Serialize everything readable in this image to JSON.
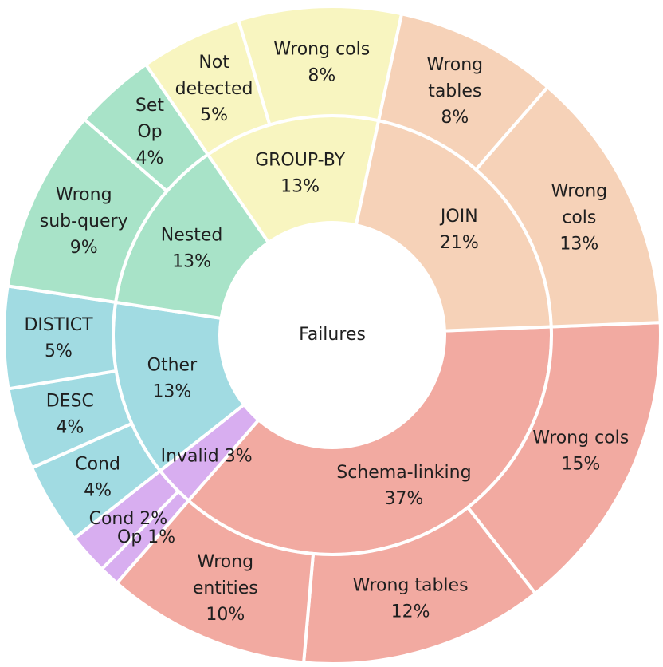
{
  "chart_data": {
    "type": "sunburst",
    "center_label": "Failures",
    "inner": [
      {
        "name": "Schema-linking",
        "label": "Schema-linking\n37%",
        "value": 37,
        "color": "#f2aaa1"
      },
      {
        "name": "Invalid",
        "label": "Invalid 3%",
        "value": 3,
        "color": "#d8aef0"
      },
      {
        "name": "Other",
        "label": "Other\n13%",
        "value": 13,
        "color": "#a1dbe2"
      },
      {
        "name": "Nested",
        "label": "Nested\n13%",
        "value": 13,
        "color": "#a8e3c8"
      },
      {
        "name": "GROUP-BY",
        "label": "GROUP-BY\n13%",
        "value": 13,
        "color": "#f8f5c0"
      },
      {
        "name": "JOIN",
        "label": "JOIN\n21%",
        "value": 21,
        "color": "#f6d2b8"
      }
    ],
    "outer": [
      {
        "parent": "Schema-linking",
        "label": "Wrong cols\n15%",
        "value": 15
      },
      {
        "parent": "Schema-linking",
        "label": "Wrong tables\n12%",
        "value": 12
      },
      {
        "parent": "Schema-linking",
        "label": "Wrong\nentities\n10%",
        "value": 10
      },
      {
        "parent": "Invalid",
        "label": "Op 1%",
        "value": 1
      },
      {
        "parent": "Invalid",
        "label": "Cond 2%",
        "value": 2
      },
      {
        "parent": "Other",
        "label": "Cond\n4%",
        "value": 4
      },
      {
        "parent": "Other",
        "label": "DESC\n4%",
        "value": 4
      },
      {
        "parent": "Other",
        "label": "DISTICT\n5%",
        "value": 5
      },
      {
        "parent": "Nested",
        "label": "Wrong\nsub-query\n9%",
        "value": 9
      },
      {
        "parent": "Nested",
        "label": "Set\nOp\n4%",
        "value": 4
      },
      {
        "parent": "GROUP-BY",
        "label": "Not\ndetected\n5%",
        "value": 5
      },
      {
        "parent": "GROUP-BY",
        "label": "Wrong cols\n8%",
        "value": 8
      },
      {
        "parent": "JOIN",
        "label": "Wrong\ntables\n8%",
        "value": 8
      },
      {
        "parent": "JOIN",
        "label": "Wrong\ncols\n13%",
        "value": 13
      }
    ]
  }
}
